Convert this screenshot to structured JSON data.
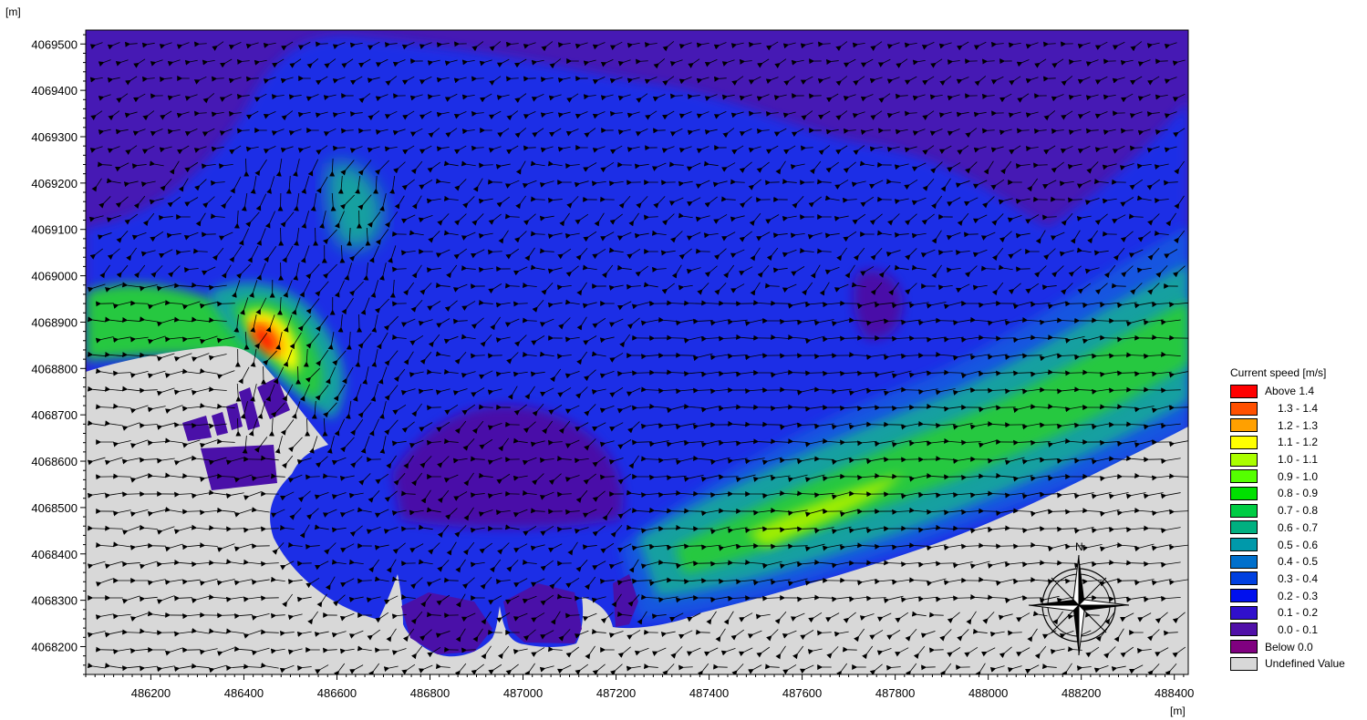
{
  "chart_data": {
    "type": "heatmap",
    "title": "",
    "xlabel": "[m]",
    "ylabel": "[m]",
    "xlim": [
      486060,
      488430
    ],
    "ylim": [
      4068140,
      4069530
    ],
    "x_ticks": [
      486200,
      486400,
      486600,
      486800,
      487000,
      487200,
      487400,
      487600,
      487800,
      488000,
      488200,
      488400
    ],
    "y_ticks": [
      4068200,
      4068300,
      4068400,
      4068500,
      4068600,
      4068700,
      4068800,
      4068900,
      4069000,
      4069100,
      4069200,
      4069300,
      4069400,
      4069500
    ],
    "colors": {
      "land": "#d8d8d8",
      "background": "#4619b4",
      "deep": "#4a10a8",
      "blue": "#1f2fe6",
      "mid_blue": "#1454e0",
      "teal": "#14a0a0",
      "green": "#28c840",
      "yellow_green": "#a0ee00",
      "yellow": "#ffff00",
      "orange": "#ff9a00",
      "red": "#ff1000"
    },
    "legend": {
      "title": "Current speed [m/s]",
      "placement": "right",
      "items": [
        {
          "label": "Above 1.4",
          "color": "#ff0000"
        },
        {
          "label": "1.3 - 1.4",
          "color": "#ff5000"
        },
        {
          "label": "1.2 - 1.3",
          "color": "#ffa000"
        },
        {
          "label": "1.1 - 1.2",
          "color": "#ffff00"
        },
        {
          "label": "1.0 - 1.1",
          "color": "#aaff00"
        },
        {
          "label": "0.9 - 1.0",
          "color": "#55ff00"
        },
        {
          "label": "0.8 - 0.9",
          "color": "#00e000"
        },
        {
          "label": "0.7 - 0.8",
          "color": "#00cc44"
        },
        {
          "label": "0.6 - 0.7",
          "color": "#00b080"
        },
        {
          "label": "0.5 - 0.6",
          "color": "#0099aa"
        },
        {
          "label": "0.4 - 0.5",
          "color": "#0070cc"
        },
        {
          "label": "0.3 - 0.4",
          "color": "#0040e0"
        },
        {
          "label": "0.2 - 0.3",
          "color": "#0010ee"
        },
        {
          "label": "0.1 - 0.2",
          "color": "#3010cc"
        },
        {
          "label": "0.0 - 0.1",
          "color": "#5010a8"
        },
        {
          "label": "Below 0.0",
          "color": "#800080"
        },
        {
          "label": "Undefined Value",
          "color": "#d8d8d8"
        }
      ]
    },
    "compass_label": "N"
  }
}
